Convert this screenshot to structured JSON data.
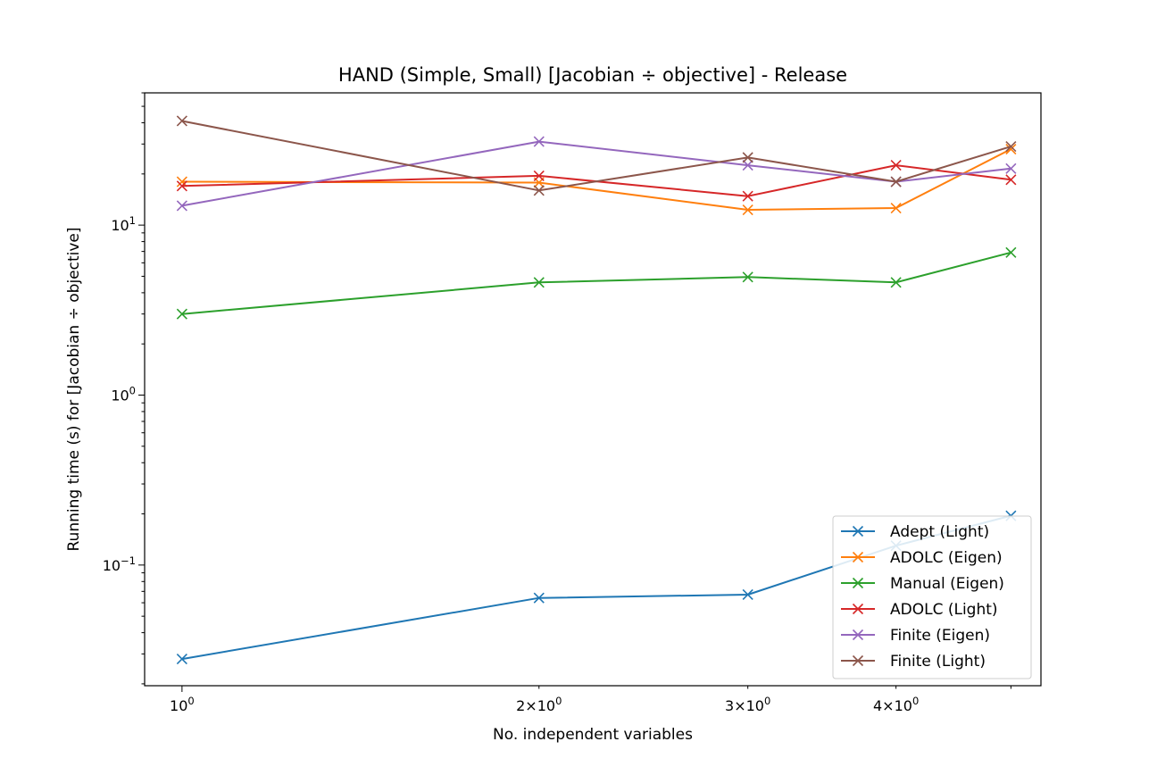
{
  "chart_data": {
    "type": "line",
    "title": "HAND (Simple, Small) [Jacobian ÷ objective] - Release",
    "xlabel": "No. independent variables",
    "ylabel": "Running time (s) for [Jacobian ÷ objective]",
    "xscale": "log",
    "yscale": "log",
    "xlim": [
      0.93,
      5.3
    ],
    "ylim": [
      0.0195,
      60
    ],
    "grid": false,
    "legend_position": "lower right",
    "marker": "x",
    "x": [
      1,
      2,
      3,
      4,
      5
    ],
    "x_ticks": [
      {
        "value": 1,
        "base": "10",
        "exp": "0"
      },
      {
        "value": 2,
        "base": "2×10",
        "exp": "0"
      },
      {
        "value": 3,
        "base": "3×10",
        "exp": "0"
      },
      {
        "value": 4,
        "base": "4×10",
        "exp": "0"
      },
      {
        "value": 5,
        "base": "",
        "exp": ""
      }
    ],
    "y_ticks": [
      {
        "value": 0.1,
        "base": "10",
        "exp": "−1"
      },
      {
        "value": 1,
        "base": "10",
        "exp": "0"
      },
      {
        "value": 10,
        "base": "10",
        "exp": "1"
      }
    ],
    "series": [
      {
        "name": "Adept (Light)",
        "color": "#1f77b4",
        "values": [
          0.028,
          0.064,
          0.067,
          0.13,
          0.195
        ]
      },
      {
        "name": "ADOLC (Eigen)",
        "color": "#ff7f0e",
        "values": [
          18.0,
          17.8,
          12.3,
          12.6,
          28.0
        ]
      },
      {
        "name": "Manual (Eigen)",
        "color": "#2ca02c",
        "values": [
          3.0,
          4.6,
          4.95,
          4.6,
          6.9
        ]
      },
      {
        "name": "ADOLC (Light)",
        "color": "#d62728",
        "values": [
          17.0,
          19.5,
          14.8,
          22.5,
          18.5
        ]
      },
      {
        "name": "Finite (Eigen)",
        "color": "#9467bd",
        "values": [
          13.0,
          31.0,
          22.5,
          18.0,
          21.5
        ]
      },
      {
        "name": "Finite (Light)",
        "color": "#8c564b",
        "values": [
          41.0,
          16.0,
          25.0,
          18.0,
          29.0
        ]
      }
    ]
  }
}
